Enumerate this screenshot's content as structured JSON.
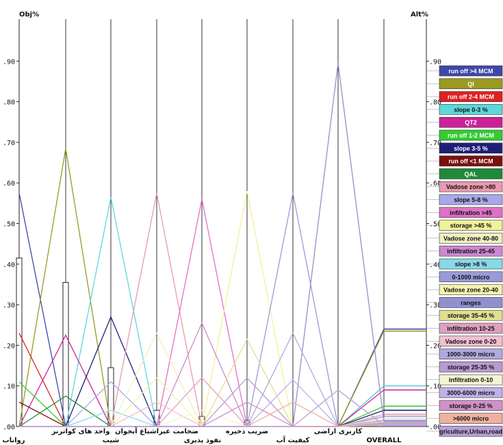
{
  "chart_data": {
    "type": "line",
    "left_axis_label": "Obj%",
    "right_axis_label": "Alt%",
    "yticks": [
      ".00",
      ".10",
      ".20",
      ".30",
      ".40",
      ".50",
      ".60",
      ".70",
      ".80",
      ".90"
    ],
    "ylim": [
      0,
      1.0
    ],
    "criteria": [
      "رواناب",
      "واحد های کواترنر",
      "شیب",
      "ضخامت غیراشباع آبخوان",
      "نفوذ پذیری",
      "ضریب ذخیره",
      "کیفیت آب",
      "کاربری اراضی",
      "OVERALL"
    ],
    "criterion_weights": [
      0.415,
      0.355,
      0.145,
      0.04,
      0.025,
      0.015,
      0.0,
      0.0
    ],
    "series": [
      {
        "name": "run off >4 MCM",
        "color": "#3f48a8",
        "values": [
          0.575,
          0.0,
          0.0,
          0.0,
          0.0,
          0.0,
          0.0,
          0.0,
          0.24
        ]
      },
      {
        "name": "QI",
        "color": "#9a9a20",
        "values": [
          0.0,
          0.685,
          0.0,
          0.0,
          0.0,
          0.0,
          0.0,
          0.0,
          0.235
        ]
      },
      {
        "name": "run off 2-4 MCM",
        "color": "#dd2222",
        "values": [
          0.23,
          0.0,
          0.0,
          0.0,
          0.0,
          0.0,
          0.0,
          0.0,
          0.1
        ]
      },
      {
        "name": "slope 0-3 %",
        "color": "#5fd6dc",
        "values": [
          0.0,
          0.0,
          0.565,
          0.0,
          0.0,
          0.0,
          0.0,
          0.0,
          0.1
        ]
      },
      {
        "name": "QT2",
        "color": "#cc2299",
        "values": [
          0.0,
          0.225,
          0.0,
          0.0,
          0.0,
          0.0,
          0.0,
          0.0,
          0.09
        ]
      },
      {
        "name": "run off 1-2 MCM",
        "color": "#33cc33",
        "values": [
          0.11,
          0.0,
          0.0,
          0.0,
          0.0,
          0.0,
          0.0,
          0.0,
          0.05
        ]
      },
      {
        "name": "slope 3-5 %",
        "color": "#1e1e7a",
        "values": [
          0.0,
          0.0,
          0.27,
          0.0,
          0.0,
          0.0,
          0.0,
          0.0,
          0.04
        ]
      },
      {
        "name": "run off <1 MCM",
        "color": "#7a1010",
        "values": [
          0.06,
          0.0,
          0.0,
          0.0,
          0.0,
          0.0,
          0.0,
          0.0,
          0.025
        ]
      },
      {
        "name": "QAL",
        "color": "#1f8a3a",
        "values": [
          0.0,
          0.075,
          0.0,
          0.0,
          0.0,
          0.0,
          0.0,
          0.0,
          0.02
        ]
      },
      {
        "name": "Vadose zone >80",
        "color": "#e89ab0",
        "values": [
          0.0,
          0.0,
          0.0,
          0.575,
          0.0,
          0.0,
          0.0,
          0.0,
          0.03
        ]
      },
      {
        "name": "slope 5-8 %",
        "color": "#a8a8e8",
        "values": [
          0.0,
          0.0,
          0.11,
          0.0,
          0.0,
          0.0,
          0.0,
          0.0,
          0.025
        ]
      },
      {
        "name": "infiltration >45",
        "color": "#e070c8",
        "values": [
          0.0,
          0.0,
          0.0,
          0.0,
          0.56,
          0.0,
          0.0,
          0.0,
          0.02
        ]
      },
      {
        "name": "storage >45 %",
        "color": "#f2f29a",
        "values": [
          0.0,
          0.0,
          0.0,
          0.0,
          0.0,
          0.58,
          0.0,
          0.0,
          0.02
        ]
      },
      {
        "name": "Vadose zone 40-80",
        "color": "#f0f0c0",
        "values": [
          0.0,
          0.0,
          0.0,
          0.23,
          0.0,
          0.0,
          0.0,
          0.0,
          0.02
        ]
      },
      {
        "name": "infiltration 25-45",
        "color": "#cc88d0",
        "values": [
          0.0,
          0.0,
          0.0,
          0.0,
          0.255,
          0.0,
          0.0,
          0.0,
          0.015
        ]
      },
      {
        "name": "slope >8 %",
        "color": "#88d8e8",
        "values": [
          0.0,
          0.0,
          0.04,
          0.0,
          0.0,
          0.0,
          0.0,
          0.0,
          0.015
        ]
      },
      {
        "name": "0-1000 micro",
        "color": "#9a9ad8",
        "values": [
          0.0,
          0.0,
          0.0,
          0.0,
          0.0,
          0.0,
          0.575,
          0.0,
          0.015
        ]
      },
      {
        "name": "Vadose zone 20-40",
        "color": "#f3f3b0",
        "values": [
          0.0,
          0.0,
          0.0,
          0.12,
          0.0,
          0.0,
          0.0,
          0.0,
          0.012
        ]
      },
      {
        "name": "ranges",
        "color": "#9090d0",
        "values": [
          0.0,
          0.0,
          0.0,
          0.0,
          0.0,
          0.0,
          0.0,
          0.895,
          0.012
        ]
      },
      {
        "name": "storage 35-45 %",
        "color": "#e0e090",
        "values": [
          0.0,
          0.0,
          0.0,
          0.0,
          0.0,
          0.215,
          0.0,
          0.0,
          0.01
        ]
      },
      {
        "name": "infiltration 10-25",
        "color": "#e0a0c0",
        "values": [
          0.0,
          0.0,
          0.0,
          0.0,
          0.12,
          0.0,
          0.0,
          0.0,
          0.01
        ]
      },
      {
        "name": "Vadose zone 0-20",
        "color": "#f0c0d0",
        "values": [
          0.0,
          0.0,
          0.0,
          0.06,
          0.0,
          0.0,
          0.0,
          0.0,
          0.008
        ]
      },
      {
        "name": "1000-3000 micro",
        "color": "#b0a8e0",
        "values": [
          0.0,
          0.0,
          0.0,
          0.0,
          0.0,
          0.0,
          0.23,
          0.0,
          0.008
        ]
      },
      {
        "name": "storage 25-35 %",
        "color": "#b89ad0",
        "values": [
          0.0,
          0.0,
          0.0,
          0.0,
          0.0,
          0.12,
          0.0,
          0.0,
          0.006
        ]
      },
      {
        "name": "infiltration 0-10",
        "color": "#f4f4d4",
        "values": [
          0.0,
          0.0,
          0.0,
          0.0,
          0.04,
          0.0,
          0.0,
          0.0,
          0.005
        ]
      },
      {
        "name": "3000-6000 micro",
        "color": "#c0b0e8",
        "values": [
          0.0,
          0.0,
          0.0,
          0.0,
          0.0,
          0.0,
          0.115,
          0.0,
          0.005
        ]
      },
      {
        "name": "storage 0-25 %",
        "color": "#d090c8",
        "values": [
          0.0,
          0.0,
          0.0,
          0.0,
          0.0,
          0.06,
          0.0,
          0.0,
          0.004
        ]
      },
      {
        "name": ">6000 micro",
        "color": "#f0b0a0",
        "values": [
          0.0,
          0.0,
          0.0,
          0.0,
          0.0,
          0.0,
          0.06,
          0.0,
          0.003
        ]
      },
      {
        "name": "griculture,Urban,road",
        "color": "#b8a0d8",
        "values": [
          0.0,
          0.0,
          0.0,
          0.0,
          0.0,
          0.0,
          0.0,
          0.09,
          0.003
        ]
      }
    ]
  }
}
